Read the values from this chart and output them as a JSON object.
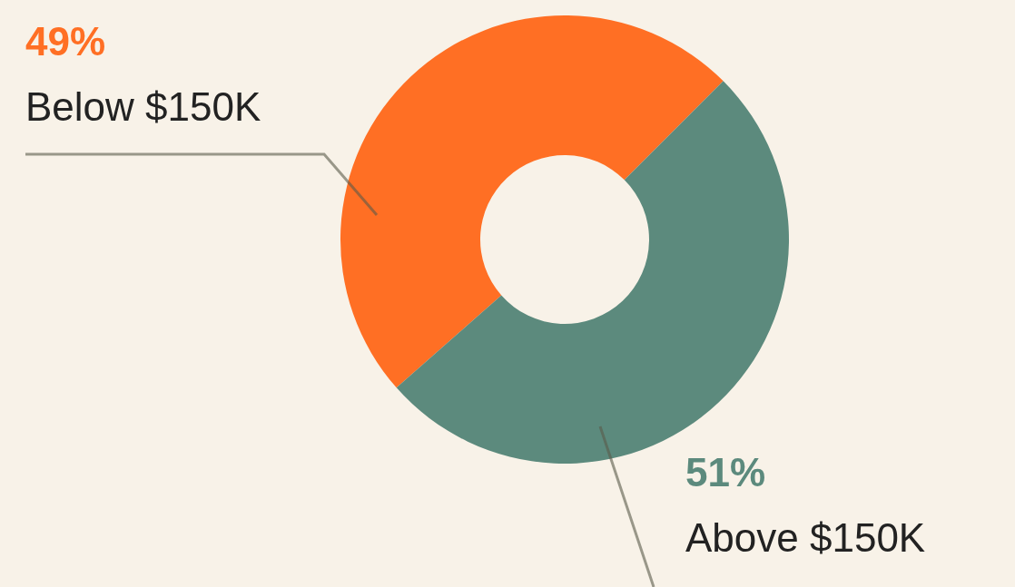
{
  "chart_data": {
    "type": "donut",
    "categories": [
      "Below $150K",
      "Above $150K"
    ],
    "values": [
      49,
      51
    ],
    "colors": [
      "#ff6f24",
      "#5c8a7d"
    ],
    "value_labels": [
      "49%",
      "51%"
    ]
  }
}
